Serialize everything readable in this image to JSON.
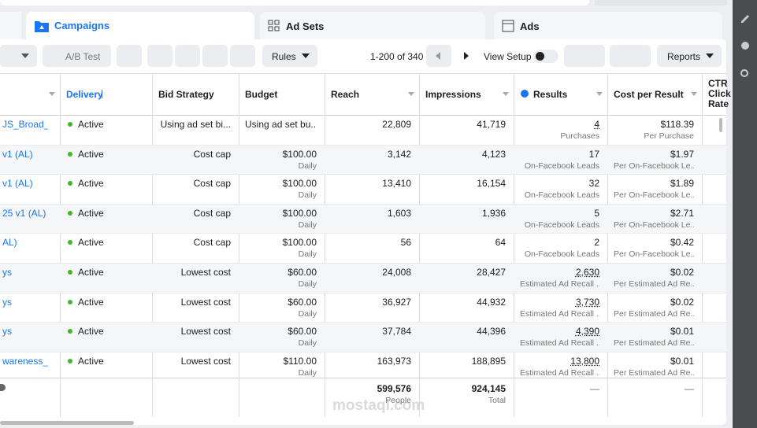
{
  "tabs": [
    "Campaigns",
    "Ad Sets",
    "Ads"
  ],
  "toolbar": {
    "ab_test": "A/B Test",
    "rules": "Rules",
    "pagination": "1-200 of 340",
    "view_setup": "View Setup",
    "reports": "Reports"
  },
  "table": {
    "columns": [
      "Delivery",
      "Bid Strategy",
      "Budget",
      "Reach",
      "Impressions",
      "Results",
      "Cost per Result",
      "CTR Click Rate"
    ],
    "rows": [
      {
        "name": "JS_Broad_...",
        "delivery": "Active",
        "bid_strategy": "Using ad set bi...",
        "budget": "Using ad set bu...",
        "reach": "22,809",
        "impressions": "41,719",
        "results": "4",
        "results_sub": "Purchases",
        "cost": "$118.39",
        "cost_sub": "Per Purchase"
      },
      {
        "name": "v1 (AL)",
        "delivery": "Active",
        "bid_strategy": "Cost cap",
        "budget": "$100.00",
        "budget_sub": "Daily",
        "reach": "3,142",
        "impressions": "4,123",
        "results": "17",
        "results_sub": "On-Facebook Leads",
        "cost": "$1.97",
        "cost_sub": "Per On-Facebook Le..."
      },
      {
        "name": "v1 (AL)",
        "delivery": "Active",
        "bid_strategy": "Cost cap",
        "budget": "$100.00",
        "budget_sub": "Daily",
        "reach": "13,410",
        "impressions": "16,154",
        "results": "32",
        "results_sub": "On-Facebook Leads",
        "cost": "$1.89",
        "cost_sub": "Per On-Facebook Le..."
      },
      {
        "name": "25 v1 (AL)",
        "delivery": "Active",
        "bid_strategy": "Cost cap",
        "budget": "$100.00",
        "budget_sub": "Daily",
        "reach": "1,603",
        "impressions": "1,936",
        "results": "5",
        "results_sub": "On-Facebook Leads",
        "cost": "$2.71",
        "cost_sub": "Per On-Facebook Le..."
      },
      {
        "name": "AL)",
        "delivery": "Active",
        "bid_strategy": "Cost cap",
        "budget": "$100.00",
        "budget_sub": "Daily",
        "reach": "56",
        "impressions": "64",
        "results": "2",
        "results_sub": "On-Facebook Leads",
        "cost": "$0.42",
        "cost_sub": "Per On-Facebook Le..."
      },
      {
        "name": "ys",
        "delivery": "Active",
        "bid_strategy": "Lowest cost",
        "budget": "$60.00",
        "budget_sub": "Daily",
        "reach": "24,008",
        "impressions": "28,427",
        "results": "2,630",
        "results_sub": "Estimated Ad Recall ...",
        "cost": "$0.02",
        "cost_sub": "Per Estimated Ad Re..."
      },
      {
        "name": "ys",
        "delivery": "Active",
        "bid_strategy": "Lowest cost",
        "budget": "$60.00",
        "budget_sub": "Daily",
        "reach": "36,927",
        "impressions": "44,932",
        "results": "3,730",
        "results_sub": "Estimated Ad Recall ...",
        "cost": "$0.02",
        "cost_sub": "Per Estimated Ad Re..."
      },
      {
        "name": "ys",
        "delivery": "Active",
        "bid_strategy": "Lowest cost",
        "budget": "$60.00",
        "budget_sub": "Daily",
        "reach": "37,784",
        "impressions": "44,396",
        "results": "4,390",
        "results_sub": "Estimated Ad Recall ...",
        "cost": "$0.01",
        "cost_sub": "Per Estimated Ad Re..."
      },
      {
        "name": "wareness_...",
        "delivery": "Active",
        "bid_strategy": "Lowest cost",
        "budget": "$110.00",
        "budget_sub": "Daily",
        "reach": "163,973",
        "impressions": "188,895",
        "results": "13,800",
        "results_sub": "Estimated Ad Recall ...",
        "cost": "$0.01",
        "cost_sub": "Per Estimated Ad Re..."
      }
    ],
    "totals": {
      "reach": "599,576",
      "reach_sub": "People",
      "impressions": "924,145",
      "impressions_sub": "Total",
      "results": "—",
      "cost": "—"
    }
  },
  "watermark": "mostaql.com"
}
